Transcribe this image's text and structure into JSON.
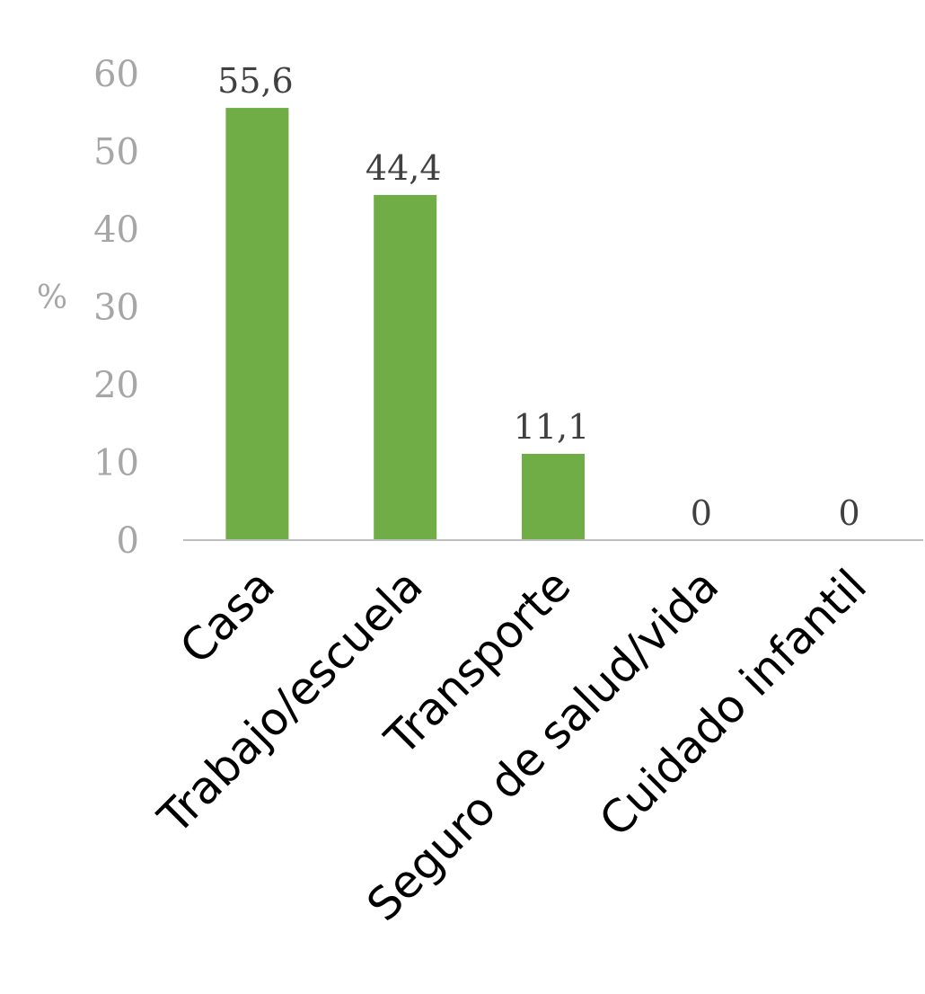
{
  "chart_data": {
    "type": "bar",
    "categories": [
      "Casa",
      "Trabajo/escuela",
      "Transporte",
      "Seguro de salud/vida",
      "Cuidado infantil"
    ],
    "values": [
      55.6,
      44.4,
      11.1,
      0,
      0
    ],
    "value_labels": [
      "55,6",
      "44,4",
      "11,1",
      "0",
      "0"
    ],
    "ylabel": "%",
    "ylim": [
      0,
      60
    ],
    "yticks": [
      "0",
      "10",
      "20",
      "30",
      "40",
      "50",
      "60"
    ],
    "bar_color": "#70ad47",
    "axis_color": "#bfbfbf",
    "grid": false,
    "legend": "none"
  }
}
